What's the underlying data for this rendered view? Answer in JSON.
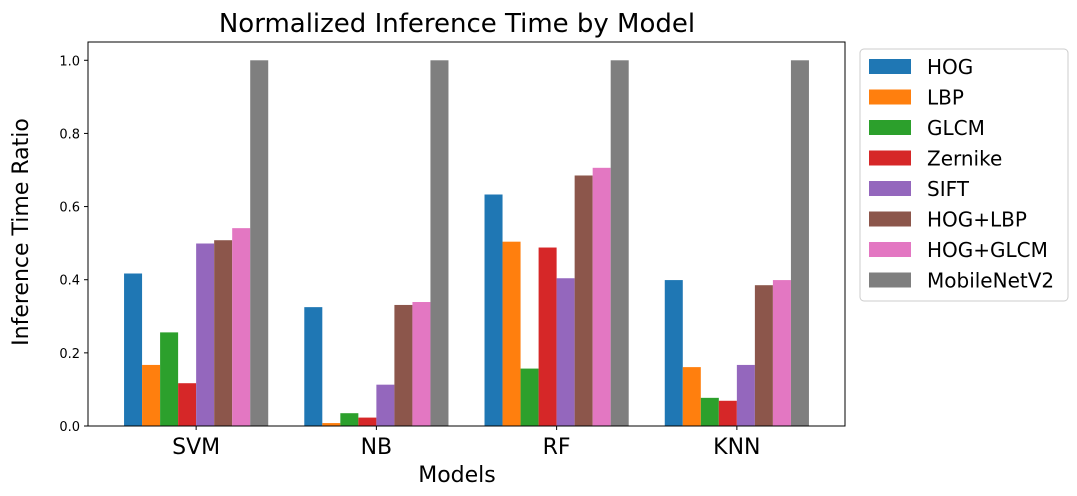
{
  "chart_data": {
    "type": "bar",
    "title": "Normalized Inference Time by Model",
    "xlabel": "Models",
    "ylabel": "Inference Time Ratio",
    "ylim": [
      0,
      1.05
    ],
    "yticks": [
      "0.0",
      "0.2",
      "0.4",
      "0.6",
      "0.8",
      "1.0"
    ],
    "ytick_values": [
      0,
      0.2,
      0.4,
      0.6,
      0.8,
      1.0
    ],
    "categories": [
      "SVM",
      "NB",
      "RF",
      "KNN"
    ],
    "grid": false,
    "legend_position": "outside-right",
    "series": [
      {
        "name": "HOG",
        "color": "#1f77b4",
        "values": [
          0.417,
          0.325,
          0.633,
          0.399
        ]
      },
      {
        "name": "LBP",
        "color": "#ff7f0e",
        "values": [
          0.167,
          0.008,
          0.504,
          0.161
        ]
      },
      {
        "name": "GLCM",
        "color": "#2ca02c",
        "values": [
          0.256,
          0.035,
          0.157,
          0.077
        ]
      },
      {
        "name": "Zernike",
        "color": "#d62728",
        "values": [
          0.117,
          0.023,
          0.488,
          0.069
        ]
      },
      {
        "name": "SIFT",
        "color": "#9467bd",
        "values": [
          0.499,
          0.113,
          0.404,
          0.167
        ]
      },
      {
        "name": "HOG+LBP",
        "color": "#8c564b",
        "values": [
          0.508,
          0.331,
          0.685,
          0.385
        ]
      },
      {
        "name": "HOG+GLCM",
        "color": "#e377c2",
        "values": [
          0.541,
          0.339,
          0.706,
          0.399
        ]
      },
      {
        "name": "MobileNetV2",
        "color": "#7f7f7f",
        "values": [
          1.0,
          1.0,
          1.0,
          1.0
        ]
      }
    ]
  }
}
